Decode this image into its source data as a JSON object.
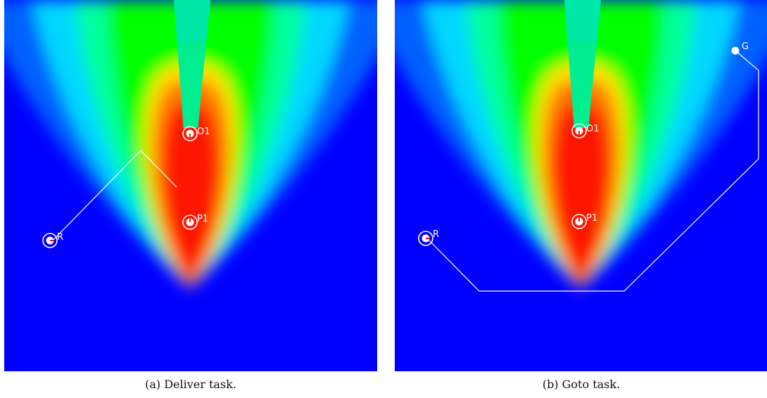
{
  "panels": [
    {
      "id": "a",
      "caption": "(a) Deliver task.",
      "markers": {
        "robot": "R",
        "object": "O1",
        "place": "P1"
      }
    },
    {
      "id": "b",
      "caption": "(b) Goto task.",
      "markers": {
        "robot": "R",
        "object": "O1",
        "place": "P1",
        "goal": "G"
      }
    }
  ],
  "colors": {
    "background_field": "#0000ff",
    "hot": "#ff1a00",
    "warm": "#ffd400",
    "mid": "#00ff00",
    "cool": "#00ffee",
    "path": "#ffffff",
    "robot_heading": "#ff0000"
  }
}
